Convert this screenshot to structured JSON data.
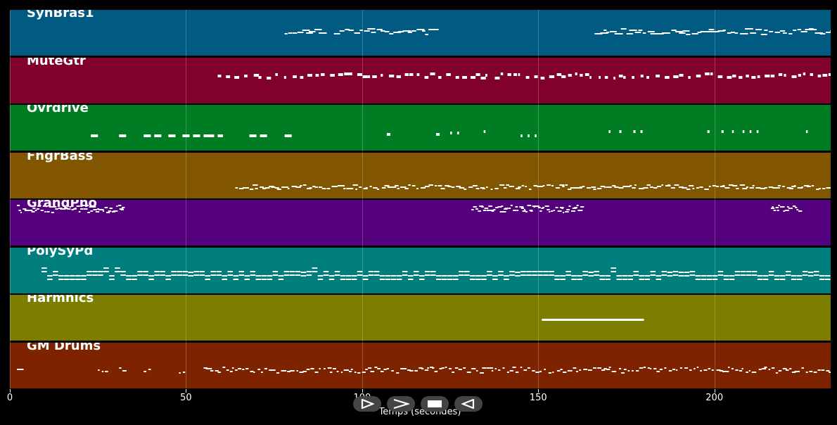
{
  "window": {
    "background": "#000000"
  },
  "chart_data": {
    "type": "piano-roll",
    "xlabel": "Temps (secondes)",
    "xlim": [
      0,
      233
    ],
    "xticks": [
      0,
      50,
      100,
      150,
      200
    ],
    "tracks": [
      {
        "name": "SynBras1",
        "color": "#005a82"
      },
      {
        "name": "MuteGtr",
        "color": "#82002d"
      },
      {
        "name": "Ovrdrive",
        "color": "#007d23"
      },
      {
        "name": "FngrBass",
        "color": "#825500"
      },
      {
        "name": "GrandPno",
        "color": "#55007d"
      },
      {
        "name": "PolySyPd",
        "color": "#007d7d"
      },
      {
        "name": "Harmnics",
        "color": "#7d7d00"
      },
      {
        "name": "GM Drums",
        "color": "#7d2300"
      }
    ]
  },
  "controls": [
    {
      "name": "play-button",
      "icon": "play-icon"
    },
    {
      "name": "fast-forward-button",
      "icon": "fast-forward-icon"
    },
    {
      "name": "stop-button",
      "icon": "stop-icon"
    },
    {
      "name": "rewind-button",
      "icon": "rewind-icon"
    }
  ]
}
